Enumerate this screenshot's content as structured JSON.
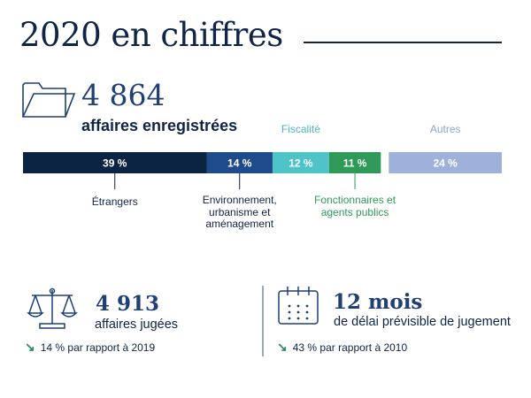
{
  "title": "2020 en chiffres",
  "stats": {
    "registered": {
      "value": "4 864",
      "label": "affaires enregistrées"
    },
    "judged": {
      "value": "4 913",
      "label": "affaires jugées",
      "trend": "14 % par rapport à 2019",
      "trend_direction": "down",
      "icon": "scales-icon"
    },
    "delay": {
      "value": "12 mois",
      "label": "de délai prévisible de jugement",
      "trend": "43 % par rapport à 2010",
      "trend_direction": "down",
      "icon": "calendar-icon"
    }
  },
  "chart_data": {
    "type": "bar",
    "orientation": "horizontal-stacked",
    "unit": "%",
    "segments": [
      {
        "category": "Étrangers",
        "value": 39,
        "label": "39 %",
        "color": "#0b2444",
        "category_position": "below",
        "category_color": "#0f2447"
      },
      {
        "category": "Environnement, urbanisme et aménagement",
        "value": 14,
        "label": "14 %",
        "color": "#1f4a8c",
        "category_position": "below",
        "category_color": "#0f2447"
      },
      {
        "category": "Fiscalité",
        "value": 12,
        "label": "12 %",
        "color": "#4fc4c8",
        "category_position": "above",
        "category_color": "#4fb4c0"
      },
      {
        "category": "Fonctionnaires et agents publics",
        "value": 11,
        "label": "11 %",
        "color": "#2f9a57",
        "category_position": "below",
        "category_color": "#2f9a57"
      },
      {
        "category": "Autres",
        "value": 24,
        "label": "24 %",
        "color": "#9fb1d9",
        "category_position": "above",
        "category_color": "#8ea3cf"
      }
    ]
  }
}
